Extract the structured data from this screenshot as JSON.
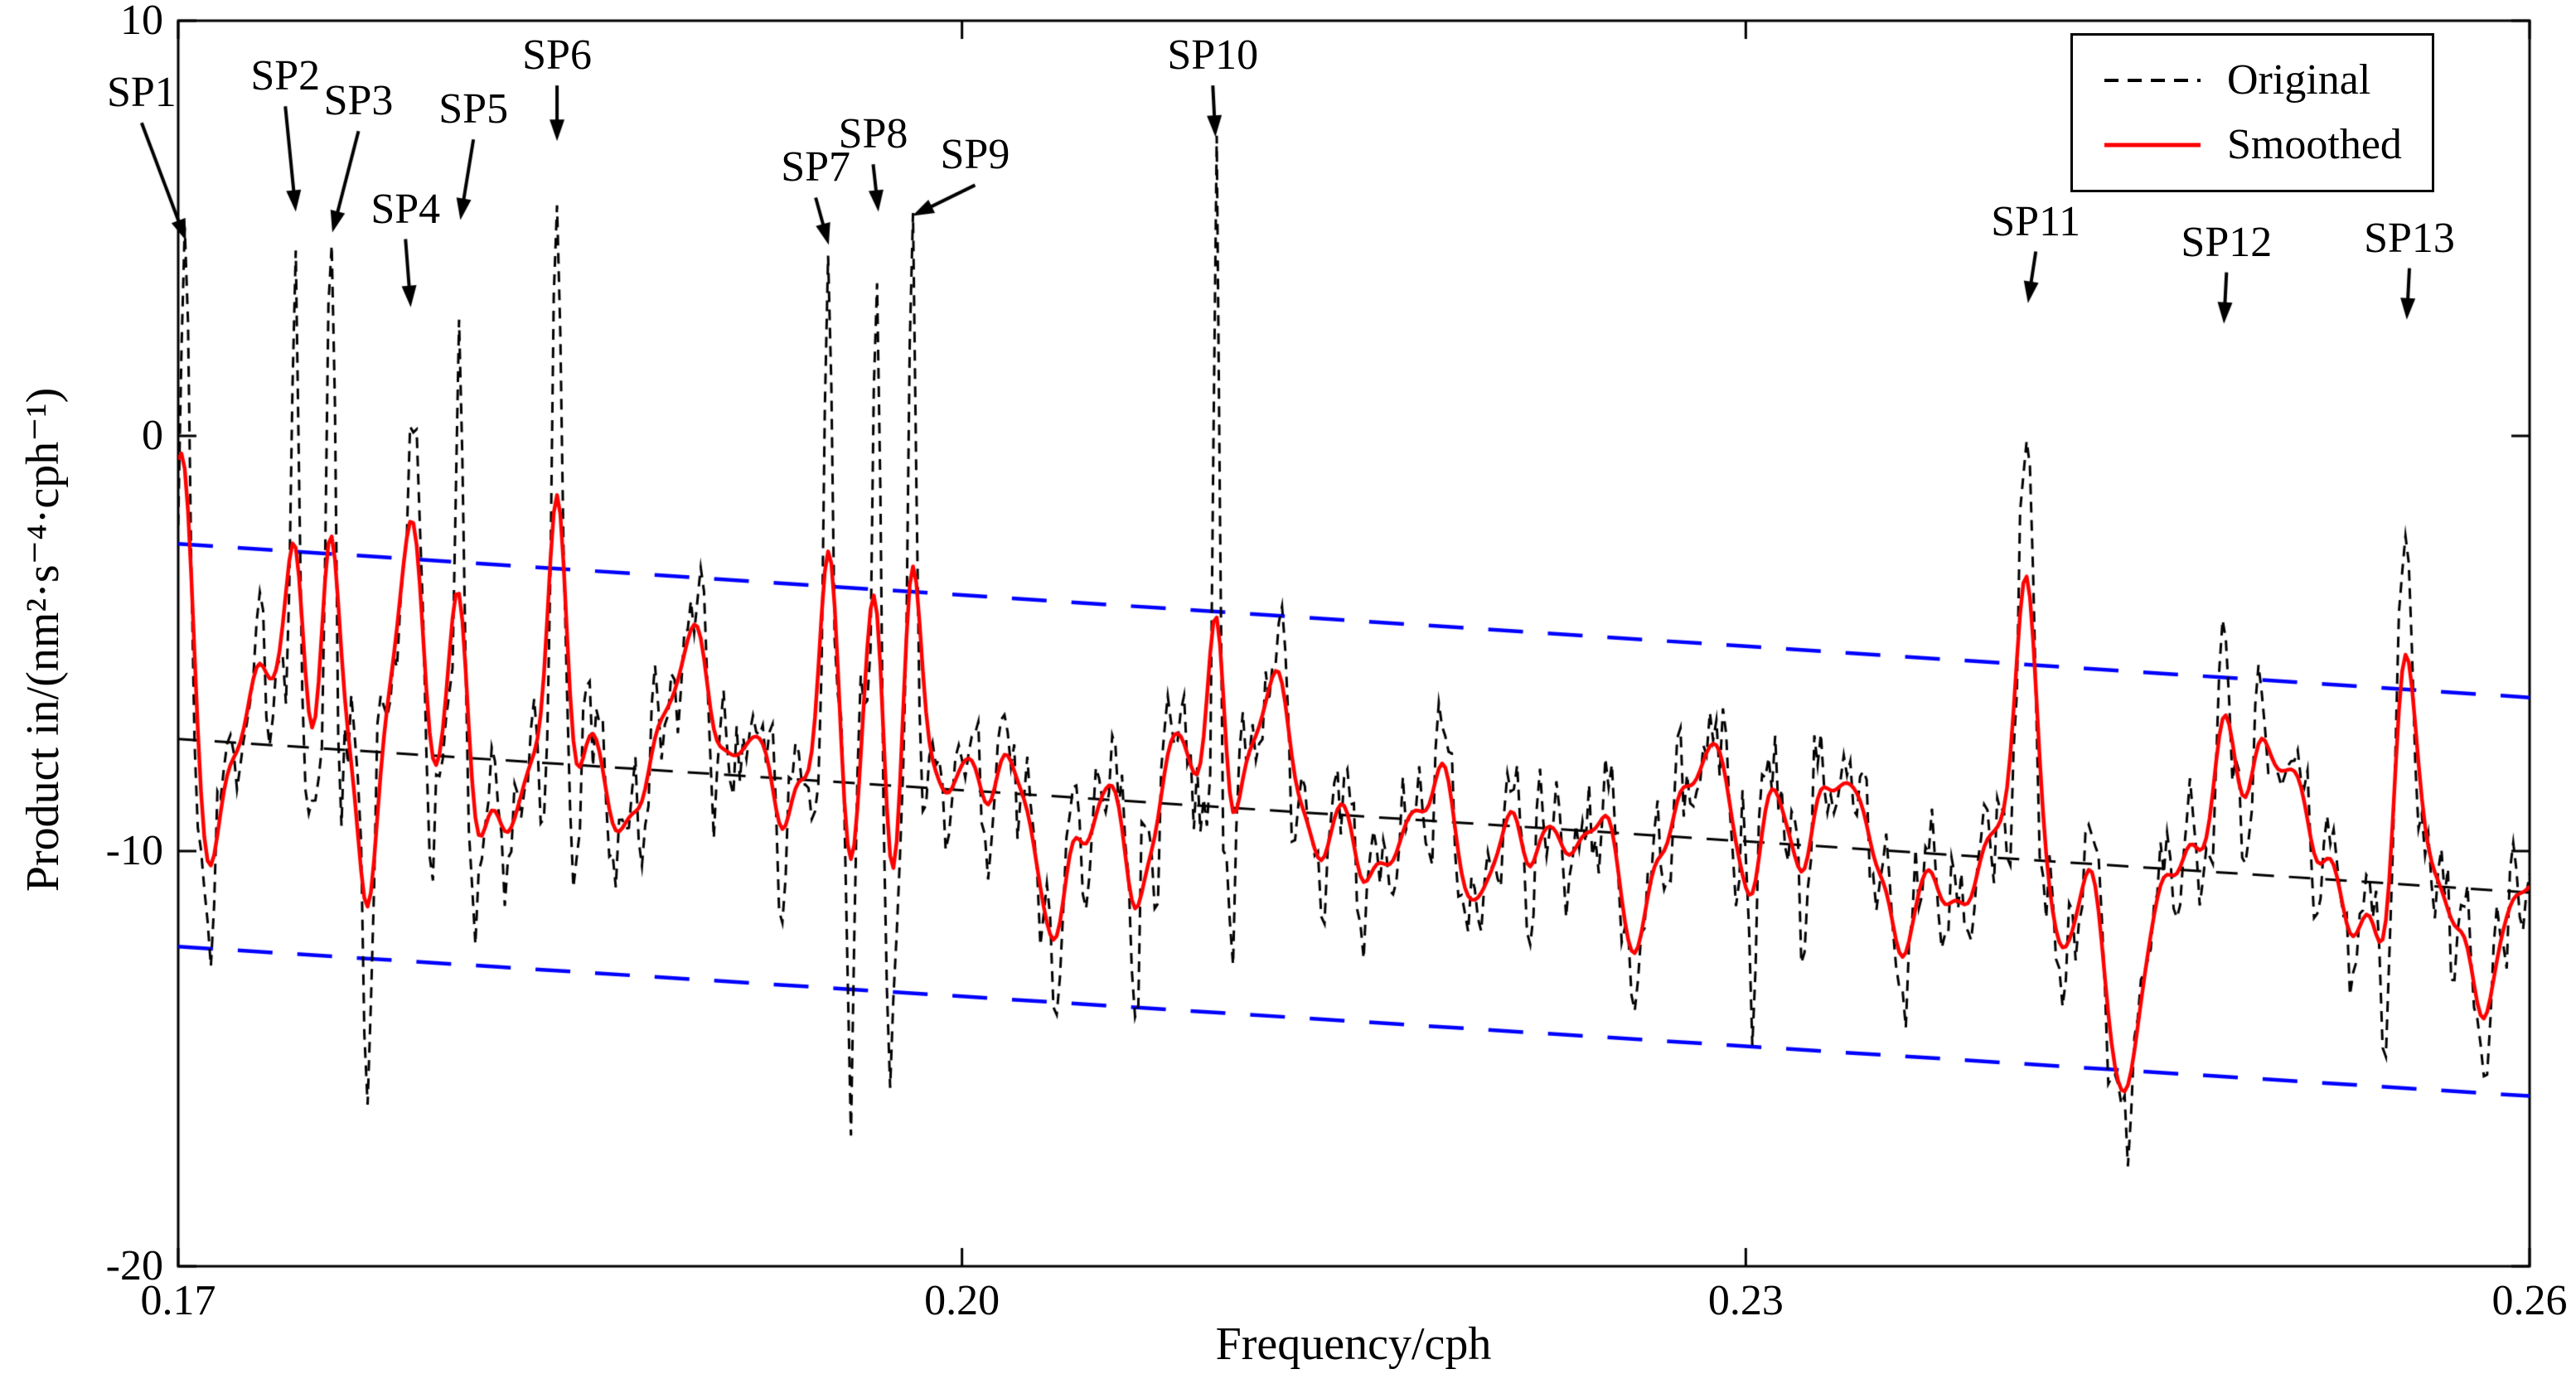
{
  "colors": {
    "background": "#ffffff",
    "axis": "#000000",
    "original_series": "#000000",
    "smoothed_series": "#ff0000",
    "confidence_bounds": "#0000ff",
    "annotation": "#000000"
  },
  "chart_data": {
    "type": "line",
    "title": "",
    "xlabel": "Frequency/cph",
    "ylabel": "Product in/(nm²·s⁻⁴·cph⁻¹)",
    "xlim": [
      0.17,
      0.26
    ],
    "ylim": [
      -20,
      10
    ],
    "grid": false,
    "xticks": [
      {
        "value": 0.17,
        "label": "0.17"
      },
      {
        "value": 0.2,
        "label": "0.20"
      },
      {
        "value": 0.23,
        "label": "0.23"
      },
      {
        "value": 0.26,
        "label": "0.26"
      }
    ],
    "yticks": [
      {
        "value": 10,
        "label": "10"
      },
      {
        "value": 0,
        "label": "0"
      },
      {
        "value": -10,
        "label": "-10"
      },
      {
        "value": -20,
        "label": "-20"
      }
    ],
    "legend": {
      "position": "top-right",
      "entries": [
        {
          "label": "Original",
          "color": "#000000",
          "line_style": "dashed"
        },
        {
          "label": "Smoothed",
          "color": "#ff0000",
          "line_style": "solid"
        }
      ]
    },
    "trend": {
      "color": "#000000",
      "line_style": "dashed",
      "x": [
        0.17,
        0.26
      ],
      "y": [
        -7.3,
        -11.0
      ]
    },
    "confidence_bounds": {
      "color": "#0000ff",
      "line_style": "dashed",
      "upper": {
        "x": [
          0.17,
          0.26
        ],
        "y": [
          -2.6,
          -6.3
        ]
      },
      "lower": {
        "x": [
          0.17,
          0.26
        ],
        "y": [
          -12.3,
          -15.9
        ]
      }
    },
    "annotations": [
      {
        "label": "SP1",
        "x": 0.1703,
        "peak_y": 4.8,
        "label_x": 0.1686,
        "label_y": 7.7,
        "tip_y": 4.7
      },
      {
        "label": "SP2",
        "x": 0.1745,
        "peak_y": 5.6,
        "label_x": 0.1741,
        "label_y": 8.1,
        "tip_y": 5.4
      },
      {
        "label": "SP3",
        "x": 0.1759,
        "peak_y": 4.7,
        "label_x": 0.1769,
        "label_y": 7.5,
        "tip_y": 4.9
      },
      {
        "label": "SP4",
        "x": 0.1789,
        "peak_y": 0.3,
        "label_x": 0.1787,
        "label_y": 4.9,
        "tip_y": 3.1
      },
      {
        "label": "SP5",
        "x": 0.1808,
        "peak_y": 4.5,
        "label_x": 0.1813,
        "label_y": 7.3,
        "tip_y": 5.2
      },
      {
        "label": "SP6",
        "x": 0.1845,
        "peak_y": 6.8,
        "label_x": 0.1845,
        "label_y": 8.6,
        "tip_y": 7.1
      },
      {
        "label": "SP7",
        "x": 0.1949,
        "peak_y": 4.9,
        "label_x": 0.1944,
        "label_y": 5.9,
        "tip_y": 4.6
      },
      {
        "label": "SP8",
        "x": 0.1968,
        "peak_y": 5.4,
        "label_x": 0.1966,
        "label_y": 6.7,
        "tip_y": 5.4
      },
      {
        "label": "SP9",
        "x": 0.1981,
        "peak_y": 5.0,
        "label_x": 0.2005,
        "label_y": 6.2,
        "tip_y": 5.3
      },
      {
        "label": "SP10",
        "x": 0.2097,
        "peak_y": 7.3,
        "label_x": 0.2096,
        "label_y": 8.6,
        "tip_y": 7.2
      },
      {
        "label": "SP11",
        "x": 0.2408,
        "peak_y": -2.6,
        "label_x": 0.2411,
        "label_y": 4.6,
        "tip_y": 3.2
      },
      {
        "label": "SP12",
        "x": 0.2483,
        "peak_y": -2.3,
        "label_x": 0.2484,
        "label_y": 4.1,
        "tip_y": 2.7
      },
      {
        "label": "SP13",
        "x": 0.2553,
        "peak_y": -2.1,
        "label_x": 0.2554,
        "label_y": 4.2,
        "tip_y": 2.8
      }
    ],
    "series": [
      {
        "name": "Original",
        "color": "#000000",
        "line_style": "dashed"
      },
      {
        "name": "Smoothed",
        "color": "#ff0000",
        "line_style": "solid"
      }
    ],
    "generation": {
      "n_points": 721,
      "hash_amp": 0.85,
      "smooth_sigma": 2.5,
      "noise_components": [
        [
          52,
          0.85,
          0.7
        ],
        [
          97,
          0.75,
          2.3
        ],
        [
          181,
          1.0,
          4.1
        ],
        [
          313,
          0.95,
          1.4
        ],
        [
          489,
          0.85,
          3.2
        ],
        [
          767,
          0.8,
          0.3
        ],
        [
          1123,
          0.7,
          5.0
        ],
        [
          1531,
          0.55,
          2.8
        ]
      ],
      "spikes": [
        {
          "x": 0.1703,
          "y": 4.8,
          "w": 1.3
        },
        {
          "x": 0.1745,
          "y": 5.6,
          "w": 1.2
        },
        {
          "x": 0.1759,
          "y": 4.7,
          "w": 1.2
        },
        {
          "x": 0.1789,
          "y": 0.3,
          "w": 2.0
        },
        {
          "x": 0.1808,
          "y": 4.5,
          "w": 1.2
        },
        {
          "x": 0.1845,
          "y": 6.8,
          "w": 1.6
        },
        {
          "x": 0.1949,
          "y": 4.9,
          "w": 1.2
        },
        {
          "x": 0.1968,
          "y": 5.4,
          "w": 1.2
        },
        {
          "x": 0.1981,
          "y": 5.0,
          "w": 1.2
        },
        {
          "x": 0.2097,
          "y": 7.3,
          "w": 0.9
        },
        {
          "x": 0.2408,
          "y": -2.6,
          "w": 2.5
        },
        {
          "x": 0.2483,
          "y": -2.3,
          "w": 2.2
        },
        {
          "x": 0.2553,
          "y": -2.1,
          "w": 2.2
        }
      ],
      "dips": [
        {
          "x": 0.17125,
          "y": -13.6,
          "w": 1.5
        },
        {
          "x": 0.1772,
          "y": -15.4,
          "w": 1.5
        },
        {
          "x": 0.1796,
          "y": -13.9,
          "w": 1.2
        },
        {
          "x": 0.19575,
          "y": -16.4,
          "w": 1.2
        },
        {
          "x": 0.19725,
          "y": -14.7,
          "w": 1.0
        },
        {
          "x": 0.2066,
          "y": -15.1,
          "w": 1.3
        },
        {
          "x": 0.2104,
          "y": -14.6,
          "w": 1.0
        },
        {
          "x": 0.2303,
          "y": -16.6,
          "w": 1.3
        },
        {
          "x": 0.2445,
          "y": -16.8,
          "w": 4.0
        },
        {
          "x": 0.2532,
          "y": -14.9,
          "w": 1.5
        }
      ]
    }
  }
}
